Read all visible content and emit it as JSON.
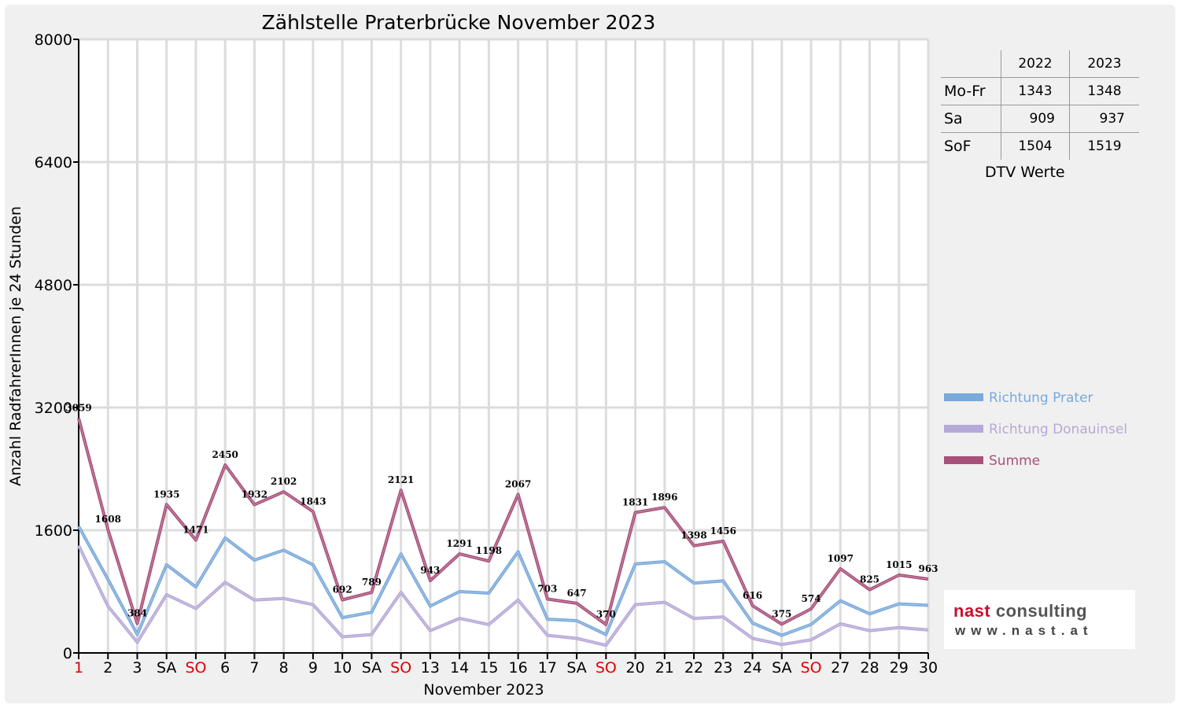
{
  "chart_data": {
    "type": "line",
    "title": "Zählstelle Praterbrücke November 2023",
    "xlabel": "November 2023",
    "ylabel": "Anzahl RadfahrerInnen je 24 Stunden",
    "ylim": [
      0,
      8000
    ],
    "yticks": [
      0,
      1600,
      3200,
      4800,
      6400,
      8000
    ],
    "grid": true,
    "legend_position": "right",
    "categories": [
      "1",
      "2",
      "3",
      "SA",
      "SO",
      "6",
      "7",
      "8",
      "9",
      "10",
      "SA",
      "SO",
      "13",
      "14",
      "15",
      "16",
      "17",
      "SA",
      "SO",
      "20",
      "21",
      "22",
      "23",
      "24",
      "SA",
      "SO",
      "27",
      "28",
      "29",
      "30"
    ],
    "red_categories": [
      0,
      4,
      11,
      18,
      25
    ],
    "series": [
      {
        "name": "Richtung Prater",
        "color": "#7aa9db",
        "values": [
          1650,
          960,
          240,
          1150,
          860,
          1500,
          1210,
          1340,
          1150,
          460,
          530,
          1290,
          610,
          800,
          780,
          1320,
          440,
          420,
          240,
          1160,
          1190,
          910,
          940,
          390,
          230,
          370,
          680,
          510,
          640,
          620
        ]
      },
      {
        "name": "Richtung Donauinsel",
        "color": "#b6a8d8",
        "values": [
          1400,
          610,
          140,
          760,
          580,
          920,
          690,
          710,
          630,
          210,
          240,
          790,
          290,
          450,
          370,
          690,
          230,
          190,
          100,
          630,
          660,
          450,
          470,
          190,
          110,
          170,
          380,
          290,
          330,
          300
        ]
      },
      {
        "name": "Summe",
        "color": "#a8507a",
        "values": [
          3059,
          1608,
          384,
          1935,
          1471,
          2450,
          1932,
          2102,
          1843,
          692,
          789,
          2121,
          943,
          1291,
          1198,
          2067,
          703,
          647,
          370,
          1831,
          1896,
          1398,
          1456,
          616,
          375,
          574,
          1097,
          825,
          1015,
          963
        ],
        "labels": [
          "3059",
          "1608",
          "384",
          "1935",
          "1471",
          "2450",
          "1932",
          "2102",
          "1843",
          "692",
          "789",
          "2121",
          "943",
          "1291",
          "1198",
          "2067",
          "703",
          "647",
          "370",
          "1831",
          "1896",
          "1398",
          "1456",
          "616",
          "375",
          "574",
          "1097",
          "825",
          "1015",
          "963"
        ]
      }
    ]
  },
  "dtv_table": {
    "caption": "DTV Werte",
    "columns": [
      "2022",
      "2023"
    ],
    "rows": [
      {
        "label": "Mo-Fr",
        "v2022": "1343",
        "v2023": "1348"
      },
      {
        "label": "Sa",
        "v2022": "909",
        "v2023": "937"
      },
      {
        "label": "SoF",
        "v2022": "1504",
        "v2023": "1519"
      }
    ]
  },
  "logo": {
    "name_part1": "nast",
    "name_part2": " consulting",
    "url": "www.nast.at",
    "accent_color": "#c8102e"
  }
}
